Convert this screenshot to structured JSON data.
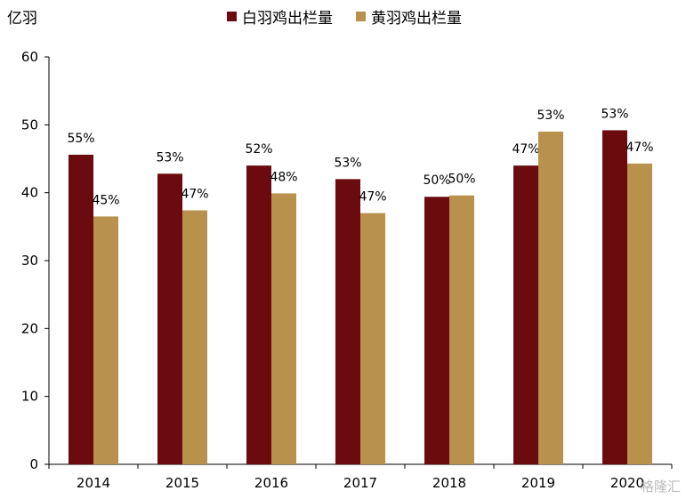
{
  "chart_data": {
    "type": "bar",
    "ylabel": "亿羽",
    "categories": [
      "2014",
      "2015",
      "2016",
      "2017",
      "2018",
      "2019",
      "2020"
    ],
    "ylim": [
      0,
      60
    ],
    "yticks": [
      0,
      10,
      20,
      30,
      40,
      50,
      60
    ],
    "grid": false,
    "legend_position": "top",
    "series": [
      {
        "name": "白羽鸡出栏量",
        "color": "#6b0a0f",
        "values": [
          45.6,
          42.8,
          44.0,
          42.0,
          39.4,
          44.0,
          49.2
        ],
        "labels": [
          "55%",
          "53%",
          "52%",
          "53%",
          "50%",
          "47%",
          "53%"
        ]
      },
      {
        "name": "黄羽鸡出栏量",
        "color": "#b8914d",
        "values": [
          36.5,
          37.4,
          39.9,
          37.0,
          39.6,
          49.0,
          44.3
        ],
        "labels": [
          "45%",
          "47%",
          "48%",
          "47%",
          "50%",
          "53%",
          "47%"
        ]
      }
    ]
  },
  "watermark": "格隆汇"
}
